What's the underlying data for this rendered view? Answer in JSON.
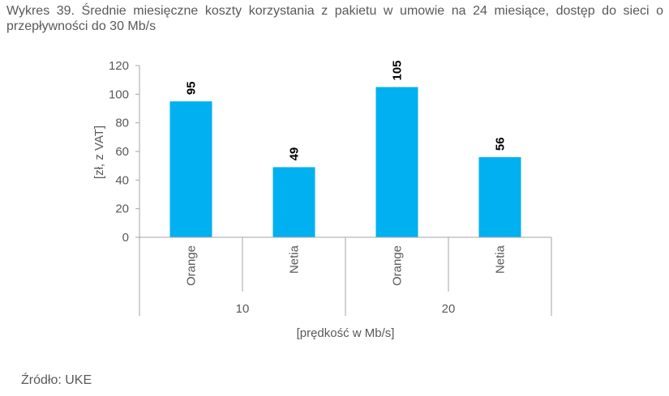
{
  "title": "Wykres 39. Średnie miesięczne koszty korzystania z pakietu w umowie na 24 miesiące, dostęp do sieci o przepływności do 30 Mb/s",
  "source": "Źródło: UKE",
  "colors": {
    "bar": "#00B0F0",
    "axis": "#A6A6A6",
    "text": "#595959",
    "label": "#000000"
  },
  "chart_data": {
    "type": "bar",
    "title": "Wykres 39. Średnie miesięczne koszty korzystania z pakietu w umowie na 24 miesiące, dostęp do sieci o przepływności do 30 Mb/s",
    "categories": [
      "Orange",
      "Netia",
      "Orange",
      "Netia"
    ],
    "groups": [
      {
        "label": "10",
        "categories": [
          "Orange",
          "Netia"
        ]
      },
      {
        "label": "20",
        "categories": [
          "Orange",
          "Netia"
        ]
      }
    ],
    "values": [
      95,
      49,
      105,
      56
    ],
    "data_labels": [
      "95",
      "49",
      "105",
      "56"
    ],
    "xlabel": "[prędkość w Mb/s]",
    "ylabel": "[zł, z VAT]",
    "ylim": [
      0,
      120
    ],
    "yticks": [
      0,
      20,
      40,
      60,
      80,
      100,
      120
    ],
    "grid": false,
    "legend": null
  }
}
